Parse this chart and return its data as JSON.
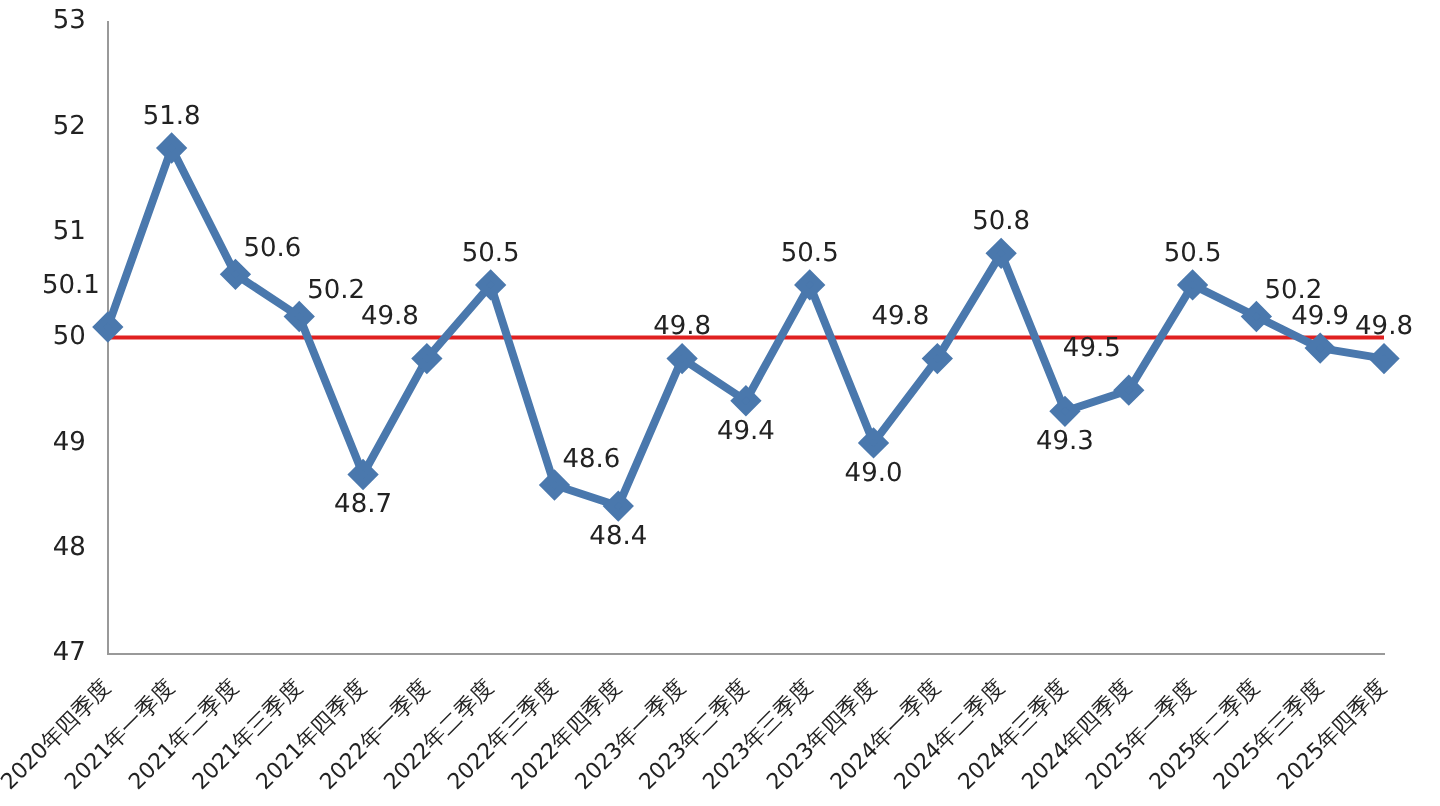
{
  "chart_data": {
    "type": "line",
    "categories": [
      "2020年四季度",
      "2021年一季度",
      "2021年二季度",
      "2021年三季度",
      "2021年四季度",
      "2022年一季度",
      "2022年二季度",
      "2022年三季度",
      "2022年四季度",
      "2023年一季度",
      "2023年二季度",
      "2023年三季度",
      "2023年四季度",
      "2024年一季度",
      "2024年二季度",
      "2024年三季度",
      "2024年四季度",
      "2025年一季度",
      "2025年二季度",
      "2025年三季度",
      "2025年四季度"
    ],
    "series": [
      {
        "color": "#4a78ad",
        "values": [
          50.1,
          51.8,
          50.6,
          50.2,
          48.7,
          49.8,
          50.5,
          48.6,
          48.4,
          49.8,
          49.4,
          50.5,
          49.0,
          49.8,
          50.8,
          49.3,
          49.5,
          50.5,
          50.2,
          49.9,
          49.8
        ],
        "value_labels": [
          "50.1",
          "51.8",
          "50.6",
          "50.2",
          "48.7",
          "49.8",
          "50.5",
          "48.6",
          "48.4",
          "49.8",
          "49.4",
          "50.5",
          "49.0",
          "49.8",
          "50.8",
          "49.3",
          "49.5",
          "50.5",
          "50.2",
          "49.9",
          "49.8"
        ]
      }
    ],
    "ylim": [
      47,
      53
    ],
    "yticks": [
      47,
      48,
      49,
      50,
      51,
      52,
      53
    ],
    "ref_lines": [
      {
        "axis": "y",
        "value": 50,
        "color": "#e02020"
      }
    ],
    "grid": false,
    "legend": false,
    "marker": "diamond",
    "line_style": "solid"
  }
}
